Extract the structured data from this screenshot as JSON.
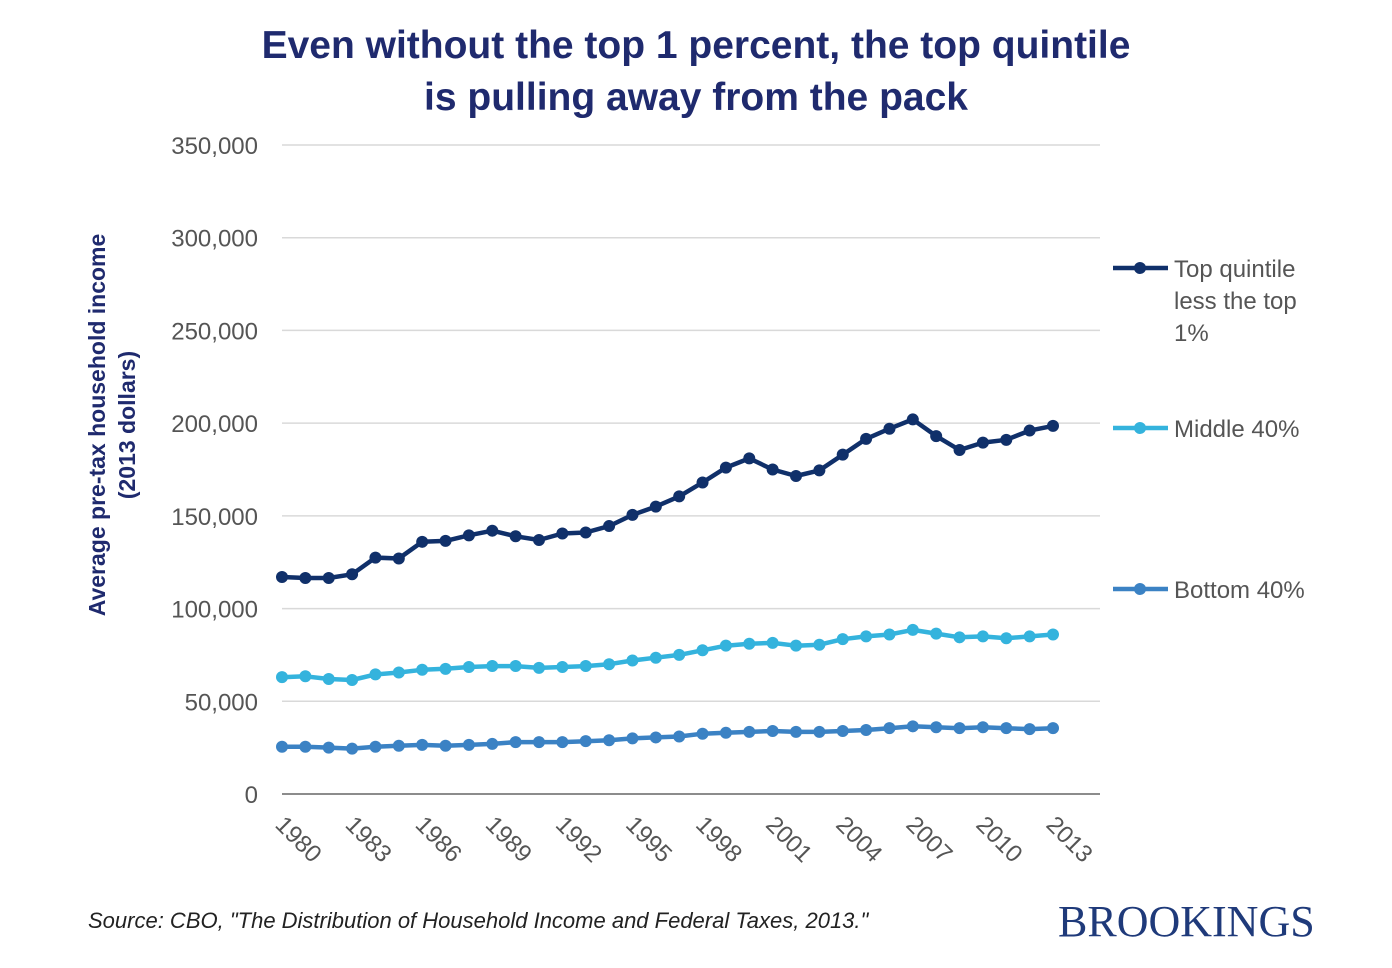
{
  "chart_data": {
    "type": "line",
    "title_lines": [
      "Even without the top 1 percent, the top quintile",
      "is pulling away from the pack"
    ],
    "ylabel_lines": [
      "Average pre-tax household income",
      "(2013 dollars)"
    ],
    "xlabel": "",
    "ylim": [
      0,
      350000
    ],
    "yticks": [
      0,
      50000,
      100000,
      150000,
      200000,
      250000,
      300000,
      350000
    ],
    "ytick_labels": [
      "0",
      "50,000",
      "100,000",
      "150,000",
      "200,000",
      "250,000",
      "300,000",
      "350,000"
    ],
    "x": [
      1980,
      1981,
      1982,
      1983,
      1984,
      1985,
      1986,
      1987,
      1988,
      1989,
      1990,
      1991,
      1992,
      1993,
      1994,
      1995,
      1996,
      1997,
      1998,
      1999,
      2000,
      2001,
      2002,
      2003,
      2004,
      2005,
      2006,
      2007,
      2008,
      2009,
      2010,
      2011,
      2012,
      2013
    ],
    "xtick_labels": [
      "1980",
      "1983",
      "1986",
      "1989",
      "1992",
      "1995",
      "1998",
      "2001",
      "2004",
      "2007",
      "2010",
      "2013"
    ],
    "grid": true,
    "legend_position": "right",
    "series": [
      {
        "name": "Top quintile less the top 1%",
        "legend_lines": [
          "Top quintile",
          "less the top",
          "1%"
        ],
        "color": "#10306a",
        "values": [
          117000,
          116500,
          116500,
          118500,
          127500,
          127000,
          136000,
          136500,
          139500,
          142000,
          139000,
          137000,
          140500,
          141000,
          144500,
          150500,
          155000,
          160500,
          168000,
          176000,
          181000,
          175000,
          171500,
          174500,
          183000,
          191500,
          197000,
          202000,
          193000,
          185500,
          189500,
          191000,
          196000,
          198500
        ]
      },
      {
        "name": "Middle 40%",
        "legend_lines": [
          "Middle 40%"
        ],
        "color": "#34b3dd",
        "values": [
          63000,
          63500,
          62000,
          61500,
          64500,
          65500,
          67000,
          67500,
          68500,
          69000,
          69000,
          68000,
          68500,
          69000,
          70000,
          72000,
          73500,
          75000,
          77500,
          80000,
          81000,
          81500,
          80000,
          80500,
          83500,
          85000,
          86000,
          88500,
          86500,
          84500,
          85000,
          84000,
          85000,
          86000
        ]
      },
      {
        "name": "Bottom 40%",
        "legend_lines": [
          "Bottom 40%"
        ],
        "color": "#3b82c4",
        "values": [
          25500,
          25500,
          25000,
          24500,
          25500,
          26000,
          26500,
          26000,
          26500,
          27000,
          28000,
          28000,
          28000,
          28500,
          29000,
          30000,
          30500,
          31000,
          32500,
          33000,
          33500,
          34000,
          33500,
          33500,
          34000,
          34500,
          35500,
          36500,
          36000,
          35500,
          36000,
          35500,
          35000,
          35500
        ]
      }
    ]
  },
  "source": "Source: CBO, \"The Distribution of Household Income and Federal Taxes, 2013.\"",
  "brand": "BROOKINGS"
}
